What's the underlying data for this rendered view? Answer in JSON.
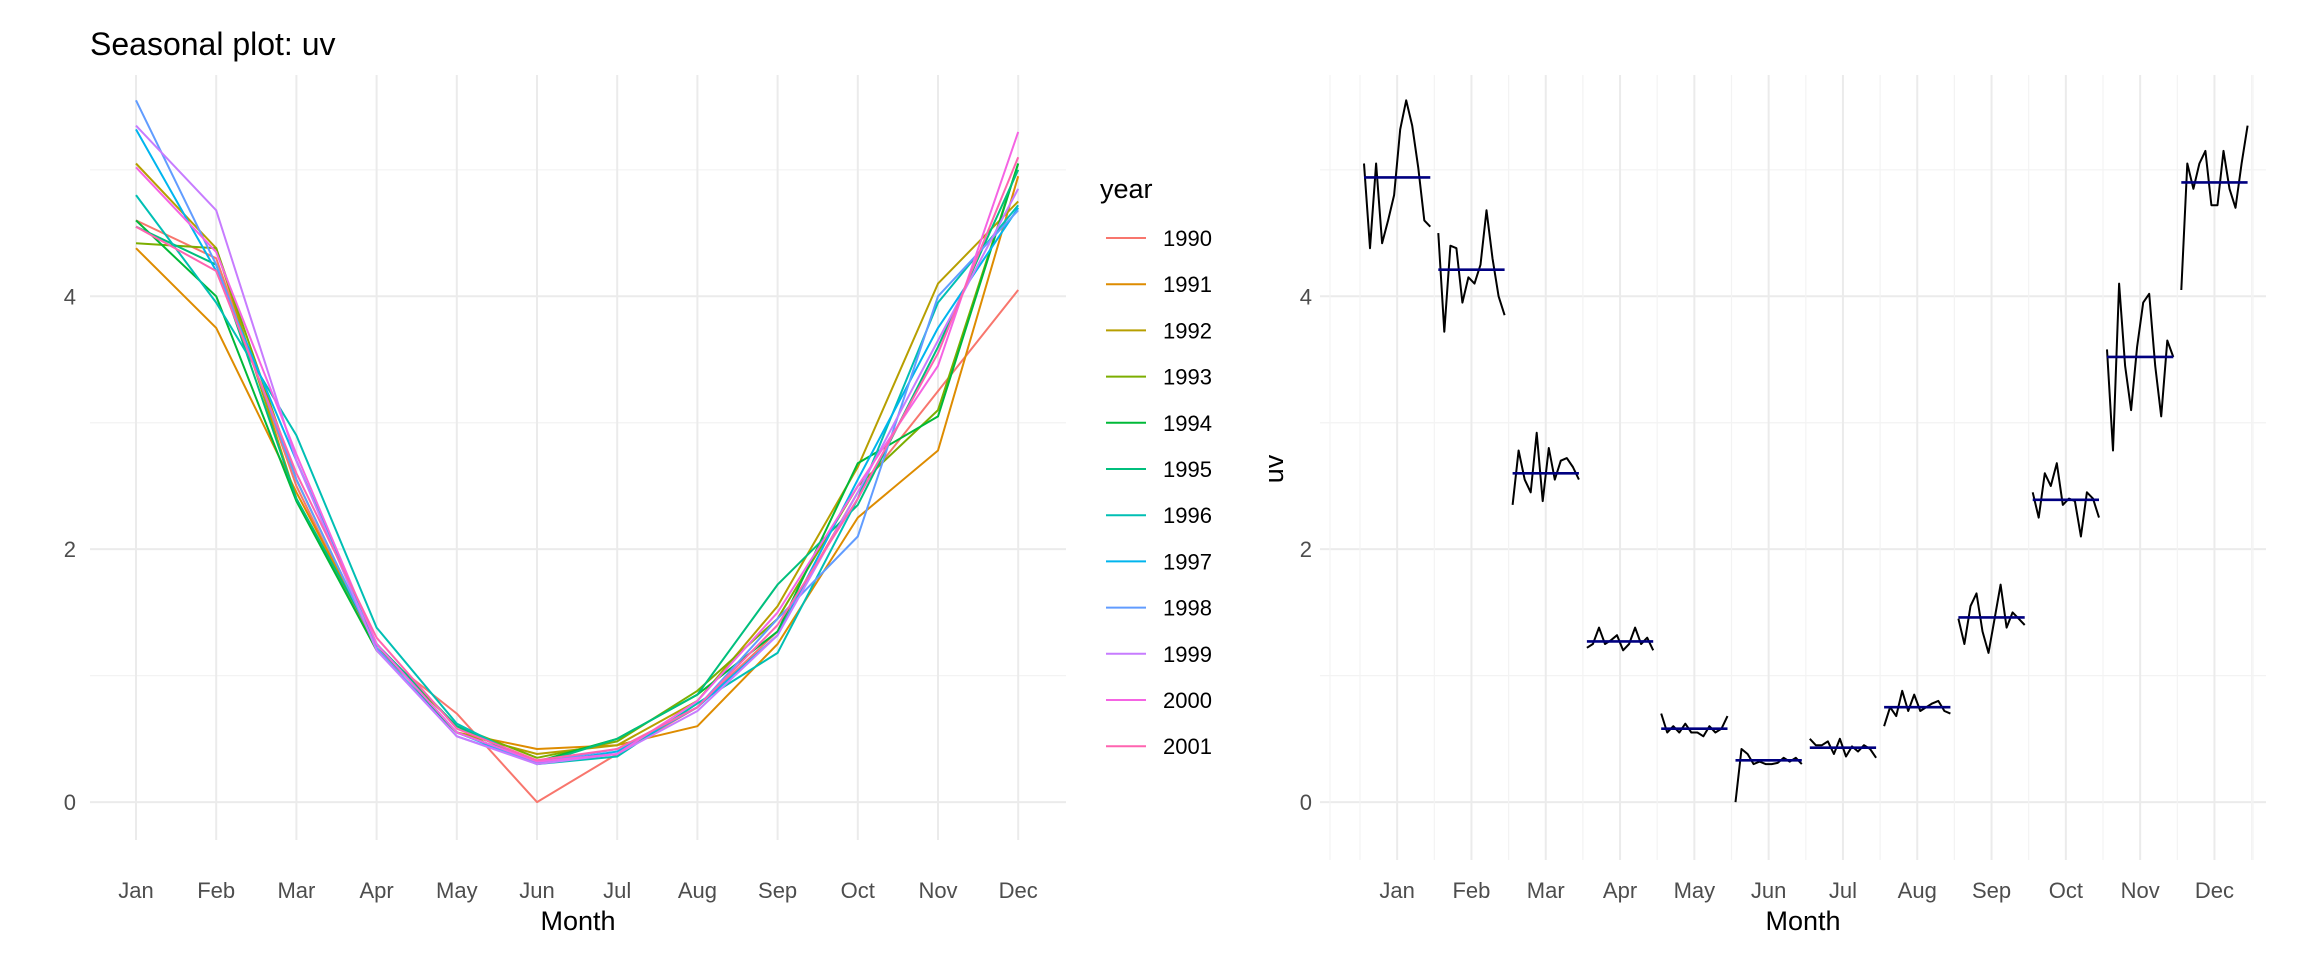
{
  "chart_data": [
    {
      "type": "line",
      "title": "Seasonal plot: uv",
      "xlabel": "Month",
      "ylabel": "",
      "categories": [
        "Jan",
        "Feb",
        "Mar",
        "Apr",
        "May",
        "Jun",
        "Jul",
        "Aug",
        "Sep",
        "Oct",
        "Nov",
        "Dec"
      ],
      "ylim": [
        -0.3,
        5.75
      ],
      "yticks": [
        0,
        2,
        4
      ],
      "grid": true,
      "legend": {
        "title": "year",
        "position": "right"
      },
      "series": [
        {
          "name": "1990",
          "color": "#F8766D",
          "values": [
            4.6,
            4.3,
            2.5,
            1.2,
            0.7,
            0.0,
            0.38,
            0.75,
            1.35,
            2.45,
            3.25,
            4.05
          ]
        },
        {
          "name": "1991",
          "color": "#DE8C00",
          "values": [
            4.38,
            3.75,
            2.45,
            1.25,
            0.55,
            0.42,
            0.45,
            0.6,
            1.25,
            2.25,
            2.78,
            4.95
          ]
        },
        {
          "name": "1992",
          "color": "#B79F00",
          "values": [
            5.05,
            4.38,
            2.4,
            1.2,
            0.55,
            0.38,
            0.45,
            0.8,
            1.55,
            2.65,
            4.1,
            4.75
          ]
        },
        {
          "name": "1993",
          "color": "#7CAE00",
          "values": [
            4.42,
            4.38,
            2.55,
            1.22,
            0.6,
            0.35,
            0.48,
            0.88,
            1.45,
            2.5,
            3.1,
            5.05
          ]
        },
        {
          "name": "1994",
          "color": "#00B938",
          "values": [
            4.6,
            4.0,
            2.38,
            1.2,
            0.55,
            0.32,
            0.5,
            0.85,
            1.35,
            2.68,
            3.05,
            5.05
          ]
        },
        {
          "name": "1995",
          "color": "#00BF7D",
          "values": [
            4.55,
            4.25,
            2.4,
            1.25,
            0.6,
            0.3,
            0.5,
            0.85,
            1.72,
            2.35,
            3.6,
            5.0
          ]
        },
        {
          "name": "1996",
          "color": "#00BFB4",
          "values": [
            4.8,
            3.95,
            2.9,
            1.38,
            0.62,
            0.3,
            0.36,
            0.78,
            1.18,
            2.4,
            3.95,
            4.72
          ]
        },
        {
          "name": "1997",
          "color": "#00B5EE",
          "values": [
            5.32,
            4.2,
            2.7,
            1.25,
            0.55,
            0.3,
            0.4,
            0.75,
            1.32,
            2.55,
            3.75,
            4.7
          ]
        },
        {
          "name": "1998",
          "color": "#619CFF",
          "values": [
            5.55,
            4.25,
            2.55,
            1.22,
            0.52,
            0.31,
            0.42,
            0.75,
            1.45,
            2.1,
            4.0,
            4.68
          ]
        },
        {
          "name": "1999",
          "color": "#C77CFF",
          "values": [
            5.35,
            4.68,
            2.7,
            1.2,
            0.52,
            0.3,
            0.38,
            0.72,
            1.32,
            2.45,
            3.65,
            4.85
          ]
        },
        {
          "name": "2000",
          "color": "#F564E3",
          "values": [
            5.02,
            4.35,
            2.75,
            1.25,
            0.55,
            0.32,
            0.38,
            0.8,
            1.5,
            2.5,
            3.45,
            5.3
          ]
        },
        {
          "name": "2001",
          "color": "#FF64B0",
          "values": [
            4.55,
            4.2,
            2.6,
            1.3,
            0.58,
            0.33,
            0.42,
            0.75,
            1.4,
            2.4,
            3.55,
            5.1
          ]
        }
      ]
    },
    {
      "type": "line",
      "title": "",
      "xlabel": "Month",
      "ylabel": "uv",
      "categories": [
        "Jan",
        "Feb",
        "Mar",
        "Apr",
        "May",
        "Jun",
        "Jul",
        "Aug",
        "Sep",
        "Oct",
        "Nov",
        "Dec"
      ],
      "ylim": [
        -0.3,
        5.75
      ],
      "yticks": [
        0,
        2,
        4
      ],
      "grid": true,
      "line_color": "#000000",
      "mean_color": "#000080",
      "subseries": [
        {
          "month": "Jan",
          "mean": 4.94,
          "values": [
            5.05,
            4.38,
            5.05,
            4.42,
            4.6,
            4.8,
            5.32,
            5.55,
            5.35,
            5.02,
            4.6,
            4.55
          ]
        },
        {
          "month": "Feb",
          "mean": 4.21,
          "values": [
            4.5,
            3.72,
            4.4,
            4.38,
            3.95,
            4.15,
            4.1,
            4.25,
            4.68,
            4.3,
            4.0,
            3.85
          ]
        },
        {
          "month": "Mar",
          "mean": 2.6,
          "values": [
            2.35,
            2.78,
            2.55,
            2.45,
            2.92,
            2.38,
            2.8,
            2.55,
            2.7,
            2.72,
            2.65,
            2.55
          ]
        },
        {
          "month": "Apr",
          "mean": 1.27,
          "values": [
            1.22,
            1.25,
            1.38,
            1.25,
            1.28,
            1.32,
            1.2,
            1.25,
            1.38,
            1.25,
            1.3,
            1.2
          ]
        },
        {
          "month": "May",
          "mean": 0.58,
          "values": [
            0.7,
            0.55,
            0.6,
            0.55,
            0.62,
            0.55,
            0.55,
            0.52,
            0.6,
            0.55,
            0.58,
            0.68
          ]
        },
        {
          "month": "Jun",
          "mean": 0.33,
          "values": [
            0.0,
            0.42,
            0.38,
            0.3,
            0.32,
            0.3,
            0.3,
            0.31,
            0.35,
            0.32,
            0.35,
            0.3
          ]
        },
        {
          "month": "Jul",
          "mean": 0.43,
          "values": [
            0.5,
            0.45,
            0.45,
            0.48,
            0.38,
            0.5,
            0.36,
            0.44,
            0.4,
            0.45,
            0.42,
            0.35
          ]
        },
        {
          "month": "Aug",
          "mean": 0.75,
          "values": [
            0.6,
            0.75,
            0.68,
            0.88,
            0.72,
            0.85,
            0.72,
            0.75,
            0.78,
            0.8,
            0.72,
            0.7
          ]
        },
        {
          "month": "Sep",
          "mean": 1.46,
          "values": [
            1.45,
            1.25,
            1.55,
            1.65,
            1.35,
            1.18,
            1.45,
            1.72,
            1.38,
            1.5,
            1.45,
            1.4
          ]
        },
        {
          "month": "Oct",
          "mean": 2.39,
          "values": [
            2.45,
            2.25,
            2.6,
            2.5,
            2.68,
            2.35,
            2.4,
            2.38,
            2.1,
            2.45,
            2.4,
            2.25
          ]
        },
        {
          "month": "Nov",
          "mean": 3.52,
          "values": [
            3.58,
            2.78,
            4.1,
            3.45,
            3.1,
            3.6,
            3.95,
            4.02,
            3.45,
            3.05,
            3.65,
            3.52
          ]
        },
        {
          "month": "Dec",
          "mean": 4.9,
          "values": [
            4.05,
            5.05,
            4.85,
            5.05,
            5.15,
            4.72,
            4.72,
            5.15,
            4.85,
            4.7,
            5.05,
            5.35
          ]
        }
      ]
    }
  ]
}
